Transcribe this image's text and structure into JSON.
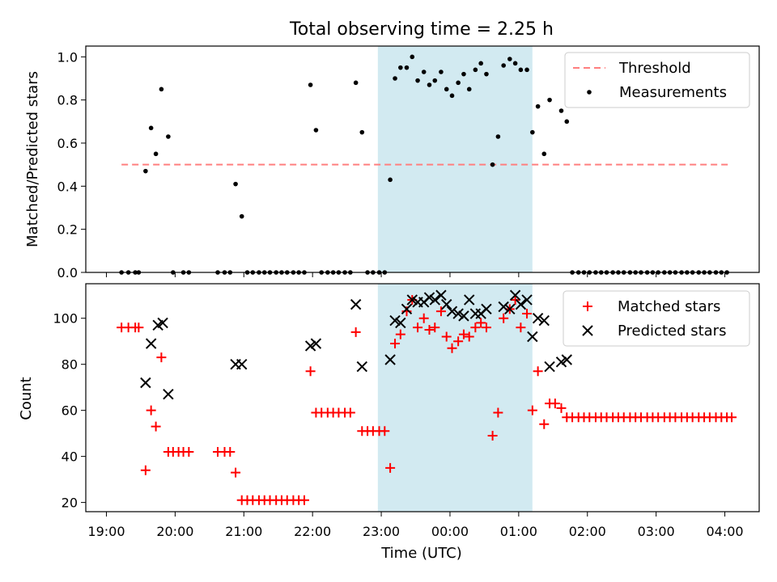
{
  "figure": {
    "title": "Total observing time = 2.25 h"
  },
  "chart_data": [
    {
      "type": "scatter",
      "ylabel": "Matched/Predicted stars",
      "xlim": [
        -0.3,
        9.5
      ],
      "ylim": [
        0,
        1.05
      ],
      "yticks": [
        0.0,
        0.2,
        0.4,
        0.6,
        0.8,
        1.0
      ],
      "ytick_labels": [
        "0.0",
        "0.2",
        "0.4",
        "0.6",
        "0.8",
        "1.0"
      ],
      "shaded_interval": [
        3.95,
        6.2
      ],
      "shade_color": "#add8e6",
      "threshold": {
        "name": "Threshold",
        "y": 0.5,
        "x": [
          0.22,
          9.05
        ],
        "color": "#ff7f7f"
      },
      "legend": {
        "position": "upper right",
        "entries": [
          "Threshold",
          "Measurements"
        ]
      },
      "series": [
        {
          "name": "Measurements",
          "color": "#000000",
          "points": [
            [
              0.22,
              0.0
            ],
            [
              0.32,
              0.0
            ],
            [
              0.42,
              0.0
            ],
            [
              0.47,
              0.0
            ],
            [
              0.57,
              0.47
            ],
            [
              0.65,
              0.67
            ],
            [
              0.72,
              0.55
            ],
            [
              0.8,
              0.85
            ],
            [
              0.9,
              0.63
            ],
            [
              0.97,
              0.0
            ],
            [
              1.12,
              0.0
            ],
            [
              1.2,
              0.0
            ],
            [
              1.62,
              0.0
            ],
            [
              1.72,
              0.0
            ],
            [
              1.8,
              0.0
            ],
            [
              1.88,
              0.41
            ],
            [
              1.97,
              0.26
            ],
            [
              2.05,
              0.0
            ],
            [
              2.13,
              0.0
            ],
            [
              2.22,
              0.0
            ],
            [
              2.3,
              0.0
            ],
            [
              2.38,
              0.0
            ],
            [
              2.47,
              0.0
            ],
            [
              2.55,
              0.0
            ],
            [
              2.63,
              0.0
            ],
            [
              2.72,
              0.0
            ],
            [
              2.8,
              0.0
            ],
            [
              2.88,
              0.0
            ],
            [
              2.97,
              0.87
            ],
            [
              3.05,
              0.66
            ],
            [
              3.13,
              0.0
            ],
            [
              3.22,
              0.0
            ],
            [
              3.3,
              0.0
            ],
            [
              3.38,
              0.0
            ],
            [
              3.47,
              0.0
            ],
            [
              3.55,
              0.0
            ],
            [
              3.63,
              0.88
            ],
            [
              3.72,
              0.65
            ],
            [
              3.8,
              0.0
            ],
            [
              3.88,
              0.0
            ],
            [
              3.97,
              0.0
            ],
            [
              4.05,
              0.0
            ],
            [
              4.13,
              0.43
            ],
            [
              4.2,
              0.9
            ],
            [
              4.28,
              0.95
            ],
            [
              4.37,
              0.95
            ],
            [
              4.45,
              1.0
            ],
            [
              4.53,
              0.89
            ],
            [
              4.62,
              0.93
            ],
            [
              4.7,
              0.87
            ],
            [
              4.78,
              0.89
            ],
            [
              4.87,
              0.93
            ],
            [
              4.95,
              0.85
            ],
            [
              5.03,
              0.82
            ],
            [
              5.12,
              0.88
            ],
            [
              5.2,
              0.92
            ],
            [
              5.28,
              0.85
            ],
            [
              5.37,
              0.94
            ],
            [
              5.45,
              0.97
            ],
            [
              5.53,
              0.92
            ],
            [
              5.62,
              0.5
            ],
            [
              5.7,
              0.63
            ],
            [
              5.78,
              0.96
            ],
            [
              5.87,
              0.99
            ],
            [
              5.95,
              0.97
            ],
            [
              6.03,
              0.94
            ],
            [
              6.12,
              0.94
            ],
            [
              6.2,
              0.65
            ],
            [
              6.28,
              0.77
            ],
            [
              6.37,
              0.55
            ],
            [
              6.45,
              0.8
            ],
            [
              6.62,
              0.75
            ],
            [
              6.7,
              0.7
            ],
            [
              6.78,
              0.0
            ],
            [
              6.87,
              0.0
            ],
            [
              6.95,
              0.0
            ],
            [
              7.03,
              0.0
            ],
            [
              7.12,
              0.0
            ],
            [
              7.2,
              0.0
            ],
            [
              7.28,
              0.0
            ],
            [
              7.37,
              0.0
            ],
            [
              7.45,
              0.0
            ],
            [
              7.53,
              0.0
            ],
            [
              7.62,
              0.0
            ],
            [
              7.7,
              0.0
            ],
            [
              7.78,
              0.0
            ],
            [
              7.87,
              0.0
            ],
            [
              7.95,
              0.0
            ],
            [
              8.03,
              0.0
            ],
            [
              8.12,
              0.0
            ],
            [
              8.2,
              0.0
            ],
            [
              8.28,
              0.0
            ],
            [
              8.37,
              0.0
            ],
            [
              8.45,
              0.0
            ],
            [
              8.53,
              0.0
            ],
            [
              8.62,
              0.0
            ],
            [
              8.7,
              0.0
            ],
            [
              8.78,
              0.0
            ],
            [
              8.87,
              0.0
            ],
            [
              8.95,
              0.0
            ],
            [
              9.03,
              0.0
            ]
          ]
        }
      ]
    },
    {
      "type": "scatter",
      "xlabel": "Time (UTC)",
      "ylabel": "Count",
      "xlim": [
        -0.3,
        9.5
      ],
      "ylim": [
        16,
        115
      ],
      "xticks": [
        0,
        1,
        2,
        3,
        4,
        5,
        6,
        7,
        8,
        9
      ],
      "xtick_labels": [
        "19:00",
        "20:00",
        "21:00",
        "22:00",
        "23:00",
        "00:00",
        "01:00",
        "02:00",
        "03:00",
        "04:00"
      ],
      "yticks": [
        20,
        40,
        60,
        80,
        100
      ],
      "ytick_labels": [
        "20",
        "40",
        "60",
        "80",
        "100"
      ],
      "shaded_interval": [
        3.95,
        6.2
      ],
      "shade_color": "#add8e6",
      "legend": {
        "position": "upper right",
        "entries": [
          "Matched stars",
          "Predicted stars"
        ]
      },
      "series": [
        {
          "name": "Matched stars",
          "marker": "+",
          "color": "#ff0000",
          "points": [
            [
              0.22,
              96
            ],
            [
              0.32,
              96
            ],
            [
              0.42,
              96
            ],
            [
              0.47,
              96
            ],
            [
              0.57,
              34
            ],
            [
              0.65,
              60
            ],
            [
              0.72,
              53
            ],
            [
              0.8,
              83
            ],
            [
              0.9,
              42
            ],
            [
              0.97,
              42
            ],
            [
              1.05,
              42
            ],
            [
              1.12,
              42
            ],
            [
              1.2,
              42
            ],
            [
              1.62,
              42
            ],
            [
              1.72,
              42
            ],
            [
              1.8,
              42
            ],
            [
              1.88,
              33
            ],
            [
              1.97,
              21
            ],
            [
              2.05,
              21
            ],
            [
              2.13,
              21
            ],
            [
              2.22,
              21
            ],
            [
              2.3,
              21
            ],
            [
              2.38,
              21
            ],
            [
              2.47,
              21
            ],
            [
              2.55,
              21
            ],
            [
              2.63,
              21
            ],
            [
              2.72,
              21
            ],
            [
              2.8,
              21
            ],
            [
              2.88,
              21
            ],
            [
              2.97,
              77
            ],
            [
              3.05,
              59
            ],
            [
              3.13,
              59
            ],
            [
              3.22,
              59
            ],
            [
              3.3,
              59
            ],
            [
              3.38,
              59
            ],
            [
              3.47,
              59
            ],
            [
              3.55,
              59
            ],
            [
              3.63,
              94
            ],
            [
              3.72,
              51
            ],
            [
              3.8,
              51
            ],
            [
              3.88,
              51
            ],
            [
              3.97,
              51
            ],
            [
              4.05,
              51
            ],
            [
              4.13,
              35
            ],
            [
              4.2,
              89
            ],
            [
              4.28,
              93
            ],
            [
              4.37,
              103
            ],
            [
              4.45,
              108
            ],
            [
              4.53,
              96
            ],
            [
              4.62,
              100
            ],
            [
              4.7,
              95
            ],
            [
              4.78,
              96
            ],
            [
              4.87,
              103
            ],
            [
              4.95,
              92
            ],
            [
              5.03,
              87
            ],
            [
              5.12,
              90
            ],
            [
              5.2,
              93
            ],
            [
              5.28,
              92
            ],
            [
              5.37,
              96
            ],
            [
              5.45,
              98
            ],
            [
              5.53,
              96
            ],
            [
              5.62,
              49
            ],
            [
              5.7,
              59
            ],
            [
              5.78,
              100
            ],
            [
              5.87,
              104
            ],
            [
              5.95,
              108
            ],
            [
              6.03,
              96
            ],
            [
              6.12,
              102
            ],
            [
              6.2,
              60
            ],
            [
              6.28,
              77
            ],
            [
              6.37,
              54
            ],
            [
              6.45,
              63
            ],
            [
              6.53,
              63
            ],
            [
              6.62,
              61
            ],
            [
              6.7,
              57
            ],
            [
              6.78,
              57
            ],
            [
              6.87,
              57
            ],
            [
              6.95,
              57
            ],
            [
              7.03,
              57
            ],
            [
              7.12,
              57
            ],
            [
              7.2,
              57
            ],
            [
              7.28,
              57
            ],
            [
              7.37,
              57
            ],
            [
              7.45,
              57
            ],
            [
              7.53,
              57
            ],
            [
              7.62,
              57
            ],
            [
              7.7,
              57
            ],
            [
              7.78,
              57
            ],
            [
              7.87,
              57
            ],
            [
              7.95,
              57
            ],
            [
              8.03,
              57
            ],
            [
              8.12,
              57
            ],
            [
              8.2,
              57
            ],
            [
              8.28,
              57
            ],
            [
              8.37,
              57
            ],
            [
              8.45,
              57
            ],
            [
              8.53,
              57
            ],
            [
              8.62,
              57
            ],
            [
              8.7,
              57
            ],
            [
              8.78,
              57
            ],
            [
              8.87,
              57
            ],
            [
              8.95,
              57
            ],
            [
              9.03,
              57
            ],
            [
              9.1,
              57
            ]
          ]
        },
        {
          "name": "Predicted stars",
          "marker": "x",
          "color": "#000000",
          "points": [
            [
              0.57,
              72
            ],
            [
              0.65,
              89
            ],
            [
              0.75,
              97
            ],
            [
              0.82,
              98
            ],
            [
              0.9,
              67
            ],
            [
              1.88,
              80
            ],
            [
              1.97,
              80
            ],
            [
              2.97,
              88
            ],
            [
              3.05,
              89
            ],
            [
              3.63,
              106
            ],
            [
              3.72,
              79
            ],
            [
              4.13,
              82
            ],
            [
              4.2,
              99
            ],
            [
              4.28,
              98
            ],
            [
              4.37,
              104
            ],
            [
              4.45,
              108
            ],
            [
              4.53,
              107
            ],
            [
              4.62,
              107
            ],
            [
              4.7,
              109
            ],
            [
              4.78,
              108
            ],
            [
              4.87,
              110
            ],
            [
              4.95,
              106
            ],
            [
              5.03,
              103
            ],
            [
              5.12,
              102
            ],
            [
              5.2,
              101
            ],
            [
              5.28,
              108
            ],
            [
              5.37,
              102
            ],
            [
              5.45,
              102
            ],
            [
              5.53,
              104
            ],
            [
              5.78,
              105
            ],
            [
              5.87,
              104
            ],
            [
              5.95,
              110
            ],
            [
              6.03,
              106
            ],
            [
              6.12,
              108
            ],
            [
              6.2,
              92
            ],
            [
              6.28,
              100
            ],
            [
              6.37,
              99
            ],
            [
              6.45,
              79
            ],
            [
              6.62,
              81
            ],
            [
              6.7,
              82
            ]
          ]
        }
      ]
    }
  ]
}
